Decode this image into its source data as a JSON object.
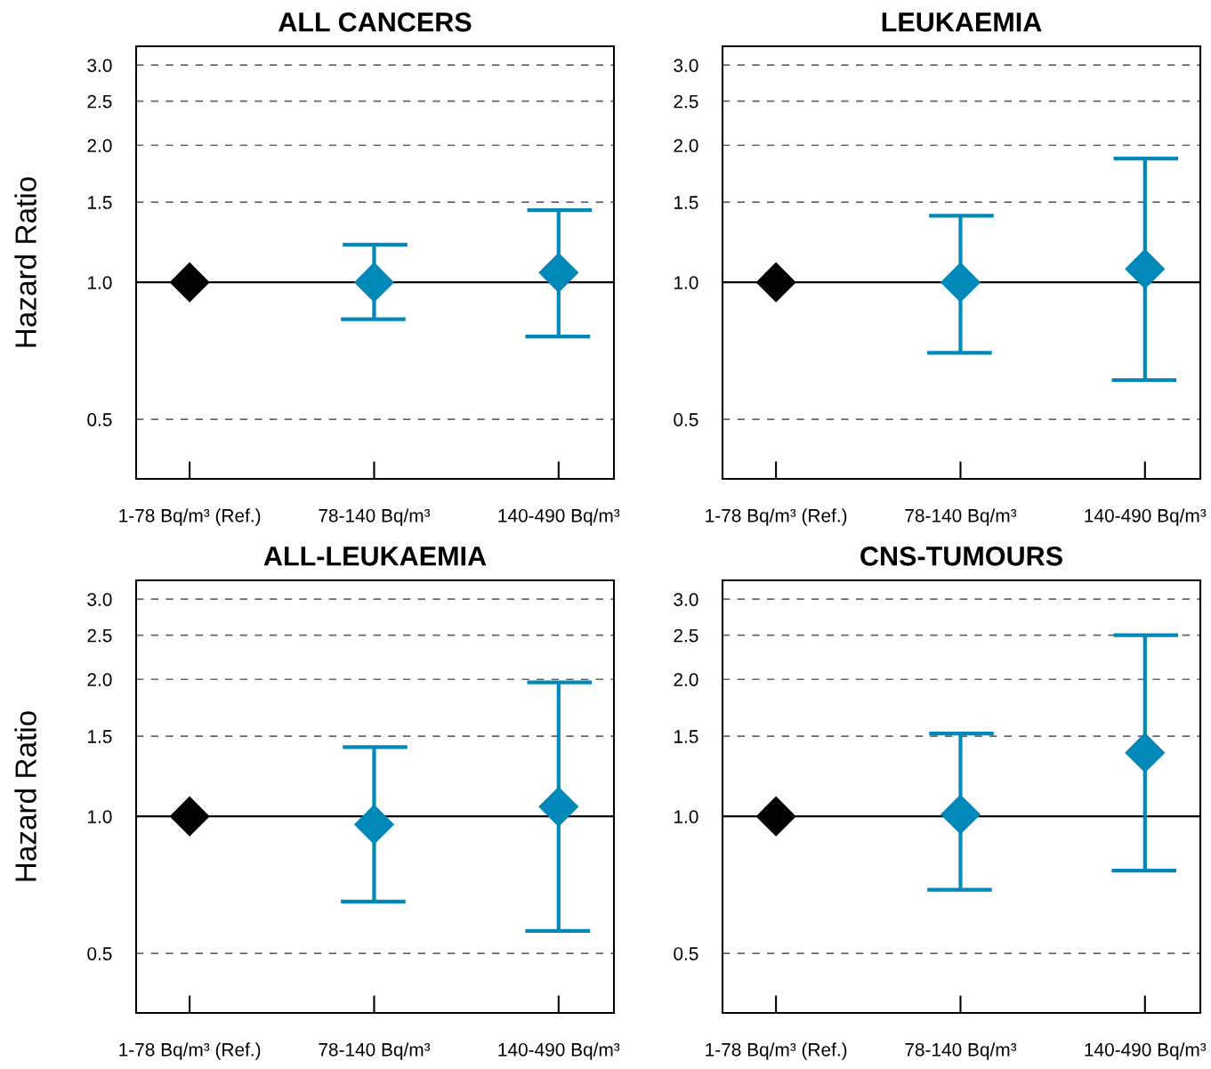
{
  "chart_data": [
    {
      "type": "scatter",
      "title": "ALL CANCERS",
      "ylabel": "Hazard Ratio",
      "categories": [
        "1-78 Bq/m³ (Ref.)",
        "78-140 Bq/m³",
        "140-490 Bq/m³"
      ],
      "log": "y",
      "ylim": [
        0.37,
        3.3
      ],
      "yticks": [
        {
          "value": 0.5,
          "label": "0.5"
        },
        {
          "value": 1,
          "label": "1.0"
        },
        {
          "value": 1.5,
          "label": "1.5"
        },
        {
          "value": 2,
          "label": "2.0"
        },
        {
          "value": 2.5,
          "label": "2.5"
        },
        {
          "value": 3,
          "label": "3.0"
        }
      ],
      "grid": "y",
      "marker": "diamond",
      "ref_lines": [
        {
          "axis": "y",
          "value": 1,
          "color": "#000000",
          "line_style": "solid"
        }
      ],
      "series": [
        {
          "color": "#000000",
          "values": [
            1,
            null,
            null
          ]
        },
        {
          "color": "#0088b8",
          "values": [
            null,
            1.0,
            1.05
          ],
          "errors": [
            null,
            [
              0.83,
              1.21
            ],
            [
              0.76,
              1.44
            ]
          ]
        }
      ]
    },
    {
      "type": "scatter",
      "title": "LEUKAEMIA",
      "categories": [
        "1-78 Bq/m³ (Ref.)",
        "78-140 Bq/m³",
        "140-490 Bq/m³"
      ],
      "log": "y",
      "ylim": [
        0.37,
        3.3
      ],
      "yticks": [
        {
          "value": 0.5,
          "label": "0.5"
        },
        {
          "value": 1,
          "label": "1.0"
        },
        {
          "value": 1.5,
          "label": "1.5"
        },
        {
          "value": 2,
          "label": "2.0"
        },
        {
          "value": 2.5,
          "label": "2.5"
        },
        {
          "value": 3,
          "label": "3.0"
        }
      ],
      "grid": "y",
      "marker": "diamond",
      "ref_lines": [
        {
          "axis": "y",
          "value": 1,
          "color": "#000000",
          "line_style": "solid"
        }
      ],
      "series": [
        {
          "color": "#000000",
          "values": [
            1,
            null,
            null
          ]
        },
        {
          "color": "#0088b8",
          "values": [
            null,
            1.0,
            1.07
          ],
          "errors": [
            null,
            [
              0.7,
              1.4
            ],
            [
              0.61,
              1.87
            ]
          ]
        }
      ]
    },
    {
      "type": "scatter",
      "title": "ALL-LEUKAEMIA",
      "ylabel": "Hazard Ratio",
      "categories": [
        "1-78 Bq/m³ (Ref.)",
        "78-140 Bq/m³",
        "140-490 Bq/m³"
      ],
      "log": "y",
      "ylim": [
        0.37,
        3.3
      ],
      "yticks": [
        {
          "value": 0.5,
          "label": "0.5"
        },
        {
          "value": 1,
          "label": "1.0"
        },
        {
          "value": 1.5,
          "label": "1.5"
        },
        {
          "value": 2,
          "label": "2.0"
        },
        {
          "value": 2.5,
          "label": "2.5"
        },
        {
          "value": 3,
          "label": "3.0"
        }
      ],
      "grid": "y",
      "marker": "diamond",
      "ref_lines": [
        {
          "axis": "y",
          "value": 1,
          "color": "#000000",
          "line_style": "solid"
        }
      ],
      "series": [
        {
          "color": "#000000",
          "values": [
            1,
            null,
            null
          ]
        },
        {
          "color": "#0088b8",
          "values": [
            null,
            0.96,
            1.05
          ],
          "errors": [
            null,
            [
              0.65,
              1.42
            ],
            [
              0.56,
              1.97
            ]
          ]
        }
      ]
    },
    {
      "type": "scatter",
      "title": "CNS-TUMOURS",
      "categories": [
        "1-78 Bq/m³ (Ref.)",
        "78-140 Bq/m³",
        "140-490 Bq/m³"
      ],
      "log": "y",
      "ylim": [
        0.37,
        3.3
      ],
      "yticks": [
        {
          "value": 0.5,
          "label": "0.5"
        },
        {
          "value": 1,
          "label": "1.0"
        },
        {
          "value": 1.5,
          "label": "1.5"
        },
        {
          "value": 2,
          "label": "2.0"
        },
        {
          "value": 2.5,
          "label": "2.5"
        },
        {
          "value": 3,
          "label": "3.0"
        }
      ],
      "grid": "y",
      "marker": "diamond",
      "ref_lines": [
        {
          "axis": "y",
          "value": 1,
          "color": "#000000",
          "line_style": "solid"
        }
      ],
      "series": [
        {
          "color": "#000000",
          "values": [
            1,
            null,
            null
          ]
        },
        {
          "color": "#0088b8",
          "values": [
            null,
            1.01,
            1.38
          ],
          "errors": [
            null,
            [
              0.69,
              1.52
            ],
            [
              0.76,
              2.5
            ]
          ]
        }
      ]
    }
  ]
}
